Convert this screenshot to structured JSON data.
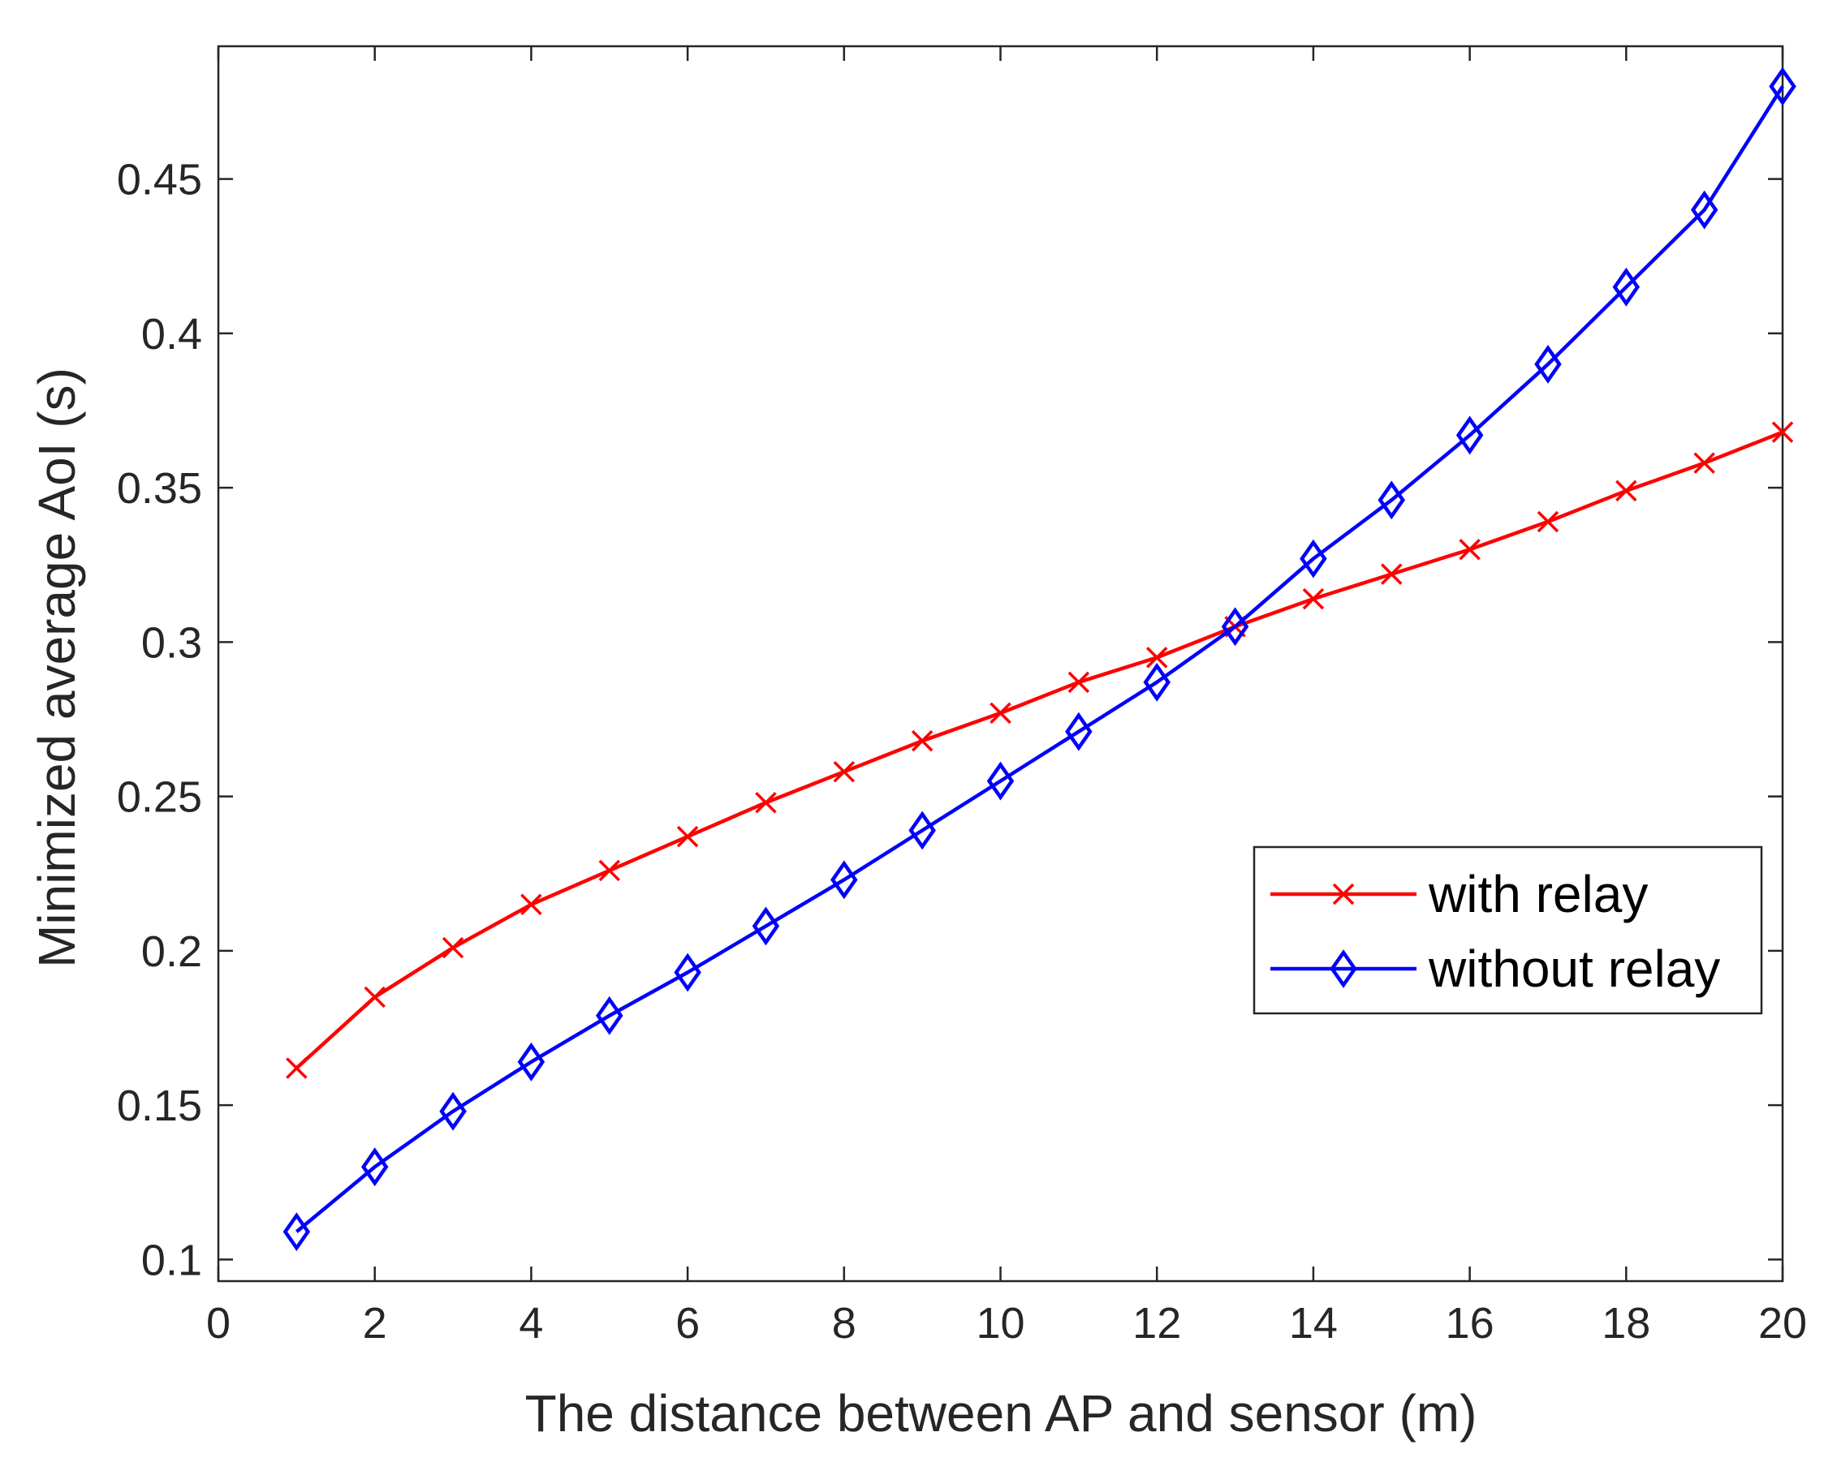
{
  "chart_data": {
    "type": "line",
    "title": "",
    "xlabel": "The distance between AP and sensor (m)",
    "ylabel": "Minimized average AoI (s)",
    "xlim": [
      0,
      20
    ],
    "ylim": [
      0.093,
      0.493
    ],
    "xticks": [
      0,
      2,
      4,
      6,
      8,
      10,
      12,
      14,
      16,
      18,
      20
    ],
    "xtick_labels": [
      "0",
      "2",
      "4",
      "6",
      "8",
      "10",
      "12",
      "14",
      "16",
      "18",
      "20"
    ],
    "yticks": [
      0.1,
      0.15,
      0.2,
      0.25,
      0.3,
      0.35,
      0.4,
      0.45
    ],
    "ytick_labels": [
      "0.1",
      "0.15",
      "0.2",
      "0.25",
      "0.3",
      "0.35",
      "0.4",
      "0.45"
    ],
    "grid": false,
    "legend_position": "center-right",
    "x": [
      1,
      2,
      3,
      4,
      5,
      6,
      7,
      8,
      9,
      10,
      11,
      12,
      13,
      14,
      15,
      16,
      17,
      18,
      19,
      20
    ],
    "series": [
      {
        "name": "with relay",
        "color": "#ff0000",
        "marker": "x",
        "values": [
          0.162,
          0.185,
          0.201,
          0.215,
          0.226,
          0.237,
          0.248,
          0.258,
          0.268,
          0.277,
          0.287,
          0.295,
          0.305,
          0.314,
          0.322,
          0.33,
          0.339,
          0.349,
          0.358,
          0.368
        ]
      },
      {
        "name": "without relay",
        "color": "#0000ff",
        "marker": "diamond",
        "values": [
          0.109,
          0.13,
          0.148,
          0.164,
          0.179,
          0.193,
          0.208,
          0.223,
          0.239,
          0.255,
          0.271,
          0.287,
          0.305,
          0.327,
          0.346,
          0.367,
          0.39,
          0.415,
          0.44,
          0.48
        ]
      }
    ]
  }
}
